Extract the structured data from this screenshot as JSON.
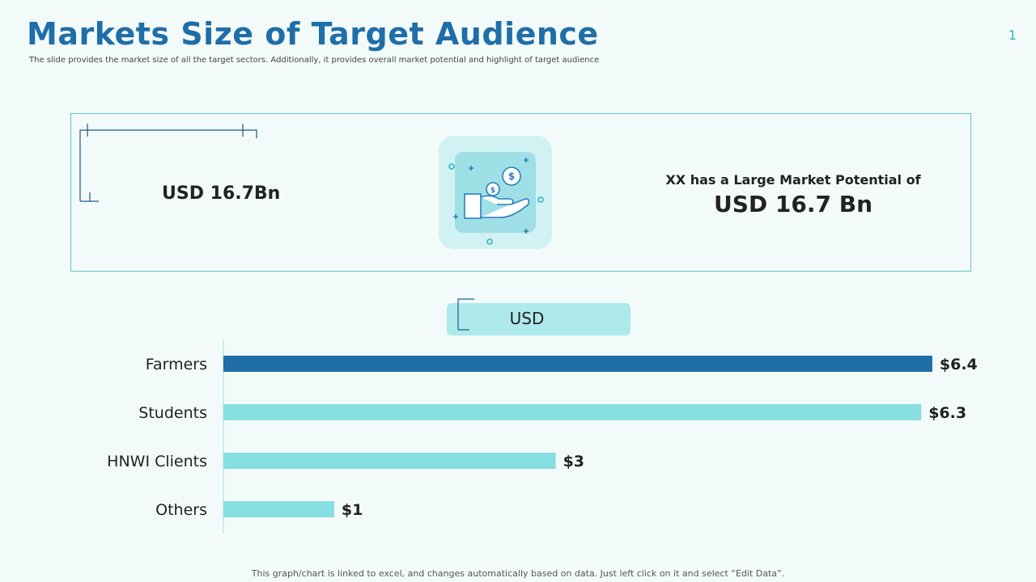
{
  "header": {
    "title": "Markets Size of Target Audience",
    "subtitle": "The slide provides the market size of all the target sectors. Additionally, it provides overall market potential and highlight of target audience",
    "page_number": "1"
  },
  "summary": {
    "left_value": "USD 16.7Bn",
    "potential_label": "XX has a Large Market Potential of",
    "potential_value": "USD 16.7 Bn",
    "icon": "money-hand-icon",
    "icon_coin_symbol": "$"
  },
  "chart_pill_label": "USD",
  "chart_data": {
    "type": "bar",
    "orientation": "horizontal",
    "title": "USD",
    "categories": [
      "Farmers",
      "Students",
      "HNWI Clients",
      "Others"
    ],
    "values": [
      6.4,
      6.3,
      3,
      1
    ],
    "data_labels": [
      "$6.4",
      "$6.3",
      "$3",
      "$1"
    ],
    "xlim": [
      0,
      7
    ],
    "colors": [
      "#1f6ea8",
      "#86dfe1",
      "#86dfe1",
      "#86dfe1"
    ]
  },
  "footer": "This graph/chart is linked to excel, and changes automatically based on data. Just left click on it and select “Edit Data”.",
  "colors": {
    "accent": "#1f6ea8",
    "teal": "#5cc9c9",
    "light_teal": "#aee9ec",
    "background": "#f3fbfa"
  }
}
